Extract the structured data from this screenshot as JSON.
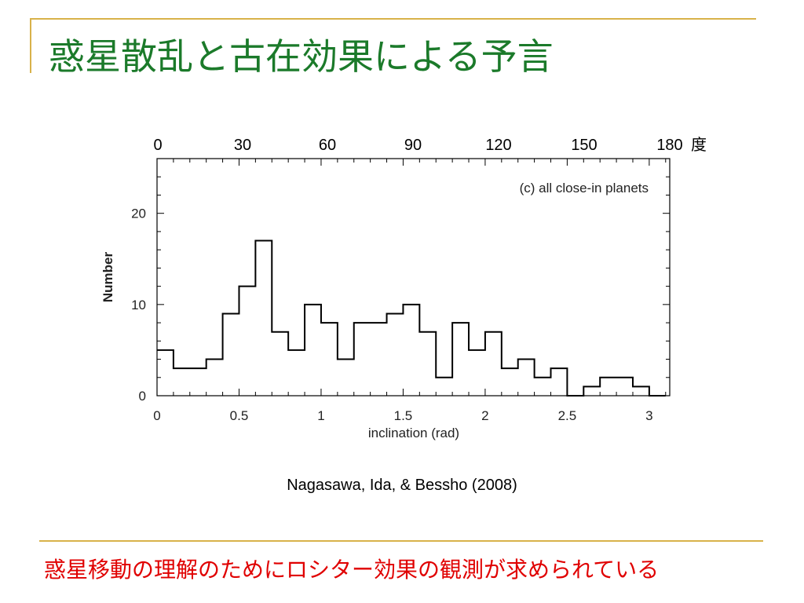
{
  "slide": {
    "title": "惑星散乱と古在効果による予言",
    "citation": "Nagasawa, Ida, & Bessho (2008)",
    "conclusion": "惑星移動の理解のためにロシター効果の観測が求められている",
    "title_color": "#1b7a2a",
    "conclusion_color": "#e00000",
    "rule_color": "#d8b24a"
  },
  "chart_data": {
    "type": "histogram",
    "annotation": "(c) all close-in planets",
    "xlabel": "inclination (rad)",
    "ylabel": "Number",
    "xlim": [
      0,
      3.125
    ],
    "ylim": [
      0,
      26
    ],
    "x_ticks": [
      "0",
      "0.5",
      "1",
      "1.5",
      "2",
      "2.5",
      "3"
    ],
    "y_ticks": [
      "0",
      "10",
      "20"
    ],
    "top_axis": {
      "ticks": [
        "0",
        "30",
        "60",
        "90",
        "120",
        "150",
        "180"
      ],
      "unit": "度"
    },
    "bin_width": 0.1,
    "bins": [
      {
        "x": 0.0,
        "value": 5
      },
      {
        "x": 0.1,
        "value": 3
      },
      {
        "x": 0.2,
        "value": 3
      },
      {
        "x": 0.3,
        "value": 4
      },
      {
        "x": 0.4,
        "value": 9
      },
      {
        "x": 0.5,
        "value": 12
      },
      {
        "x": 0.6,
        "value": 17
      },
      {
        "x": 0.7,
        "value": 7
      },
      {
        "x": 0.8,
        "value": 5
      },
      {
        "x": 0.9,
        "value": 10
      },
      {
        "x": 1.0,
        "value": 8
      },
      {
        "x": 1.1,
        "value": 4
      },
      {
        "x": 1.2,
        "value": 8
      },
      {
        "x": 1.3,
        "value": 8
      },
      {
        "x": 1.4,
        "value": 9
      },
      {
        "x": 1.5,
        "value": 10
      },
      {
        "x": 1.6,
        "value": 7
      },
      {
        "x": 1.7,
        "value": 2
      },
      {
        "x": 1.8,
        "value": 8
      },
      {
        "x": 1.9,
        "value": 5
      },
      {
        "x": 2.0,
        "value": 7
      },
      {
        "x": 2.1,
        "value": 3
      },
      {
        "x": 2.2,
        "value": 4
      },
      {
        "x": 2.3,
        "value": 2
      },
      {
        "x": 2.4,
        "value": 3
      },
      {
        "x": 2.5,
        "value": 0
      },
      {
        "x": 2.6,
        "value": 1
      },
      {
        "x": 2.7,
        "value": 2
      },
      {
        "x": 2.8,
        "value": 2
      },
      {
        "x": 2.9,
        "value": 1
      },
      {
        "x": 3.0,
        "value": 0
      }
    ],
    "grid": false
  }
}
